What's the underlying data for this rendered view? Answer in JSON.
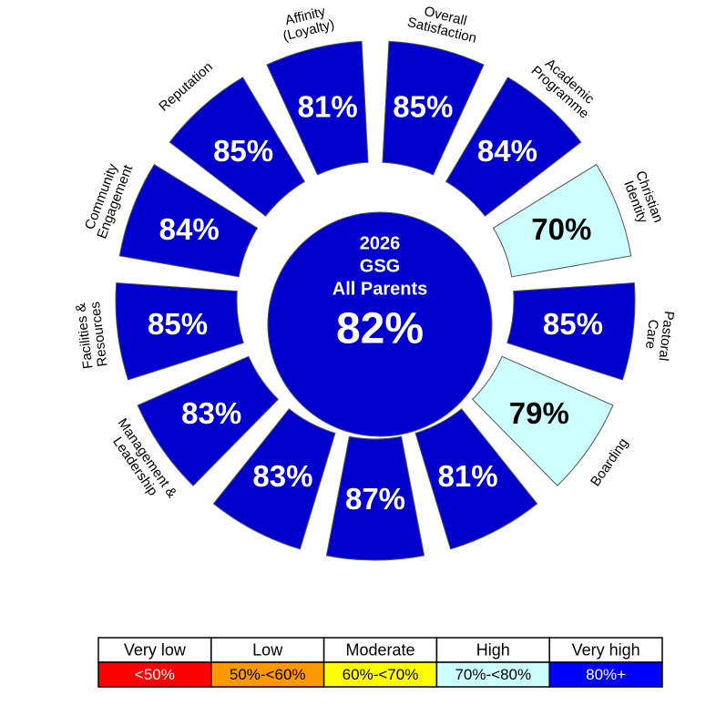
{
  "chart_data": {
    "type": "radial",
    "categories": [
      [
        "Overall",
        "Satisfaction"
      ],
      [
        "Academic",
        "Programme"
      ],
      [
        "Christian",
        "Identity"
      ],
      [
        "Pastoral",
        "Care"
      ],
      [
        "Boarding"
      ],
      null,
      null,
      null,
      [
        "Management &",
        "Leadership"
      ],
      [
        "Facilities &",
        "Resources"
      ],
      [
        "Community",
        "Engagement"
      ],
      [
        "Reputation"
      ],
      [
        "Affinity",
        "(Loyalty)"
      ]
    ],
    "values": [
      85,
      84,
      70,
      85,
      79,
      81,
      87,
      83,
      83,
      85,
      84,
      85,
      81
    ],
    "value_labels": [
      "85%",
      "84%",
      "70%",
      "85%",
      "79%",
      "81%",
      "87%",
      "83%",
      "83%",
      "85%",
      "84%",
      "85%",
      "81%"
    ],
    "colors": [
      "#0000cc",
      "#0000cc",
      "#ccffff",
      "#0000cc",
      "#ccffff",
      "#0000cc",
      "#0000cc",
      "#0000cc",
      "#0000cc",
      "#0000cc",
      "#0000cc",
      "#0000cc",
      "#0000cc"
    ],
    "center": {
      "title": [
        "2026",
        "GSG",
        "All Parents"
      ],
      "value": 82,
      "value_label": "82%",
      "color": "#0000cc"
    },
    "legend": {
      "names": [
        "Very low",
        "Low",
        "Moderate",
        "High",
        "Very high"
      ],
      "ranges": [
        "<50%",
        "50%-<60%",
        "60%-<70%",
        "70%-<80%",
        "80%+"
      ],
      "colors": [
        "#ff0000",
        "#ff9900",
        "#ffff00",
        "#ccffff",
        "#0000ff"
      ]
    }
  }
}
